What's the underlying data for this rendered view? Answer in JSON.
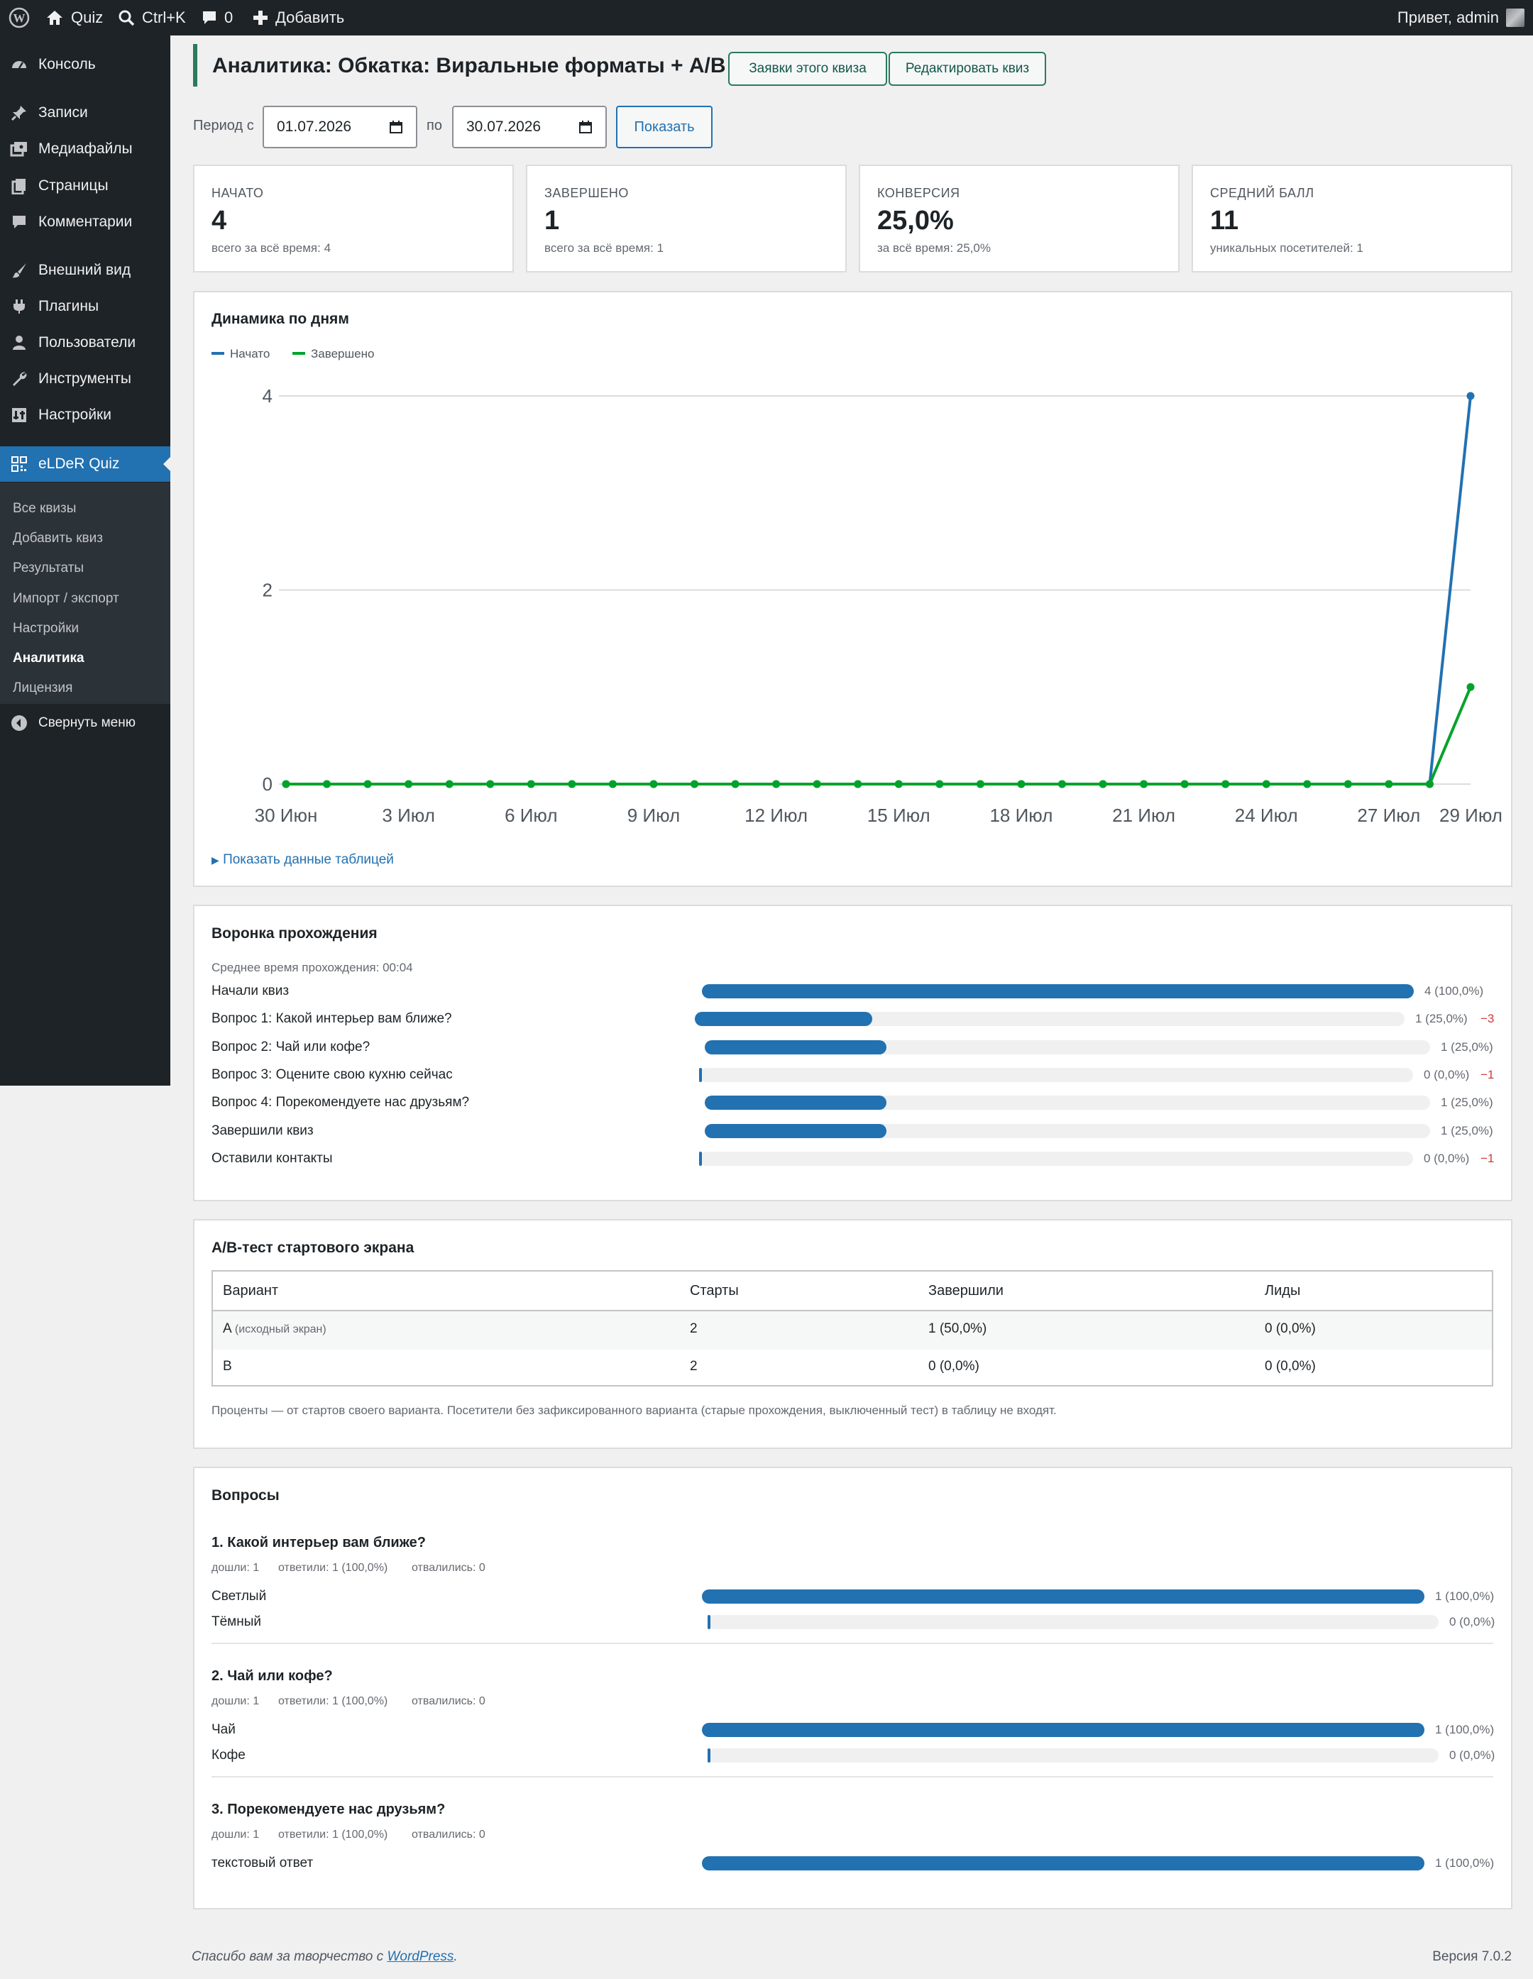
{
  "adminbar": {
    "site": "Quiz",
    "search": "Ctrl+K",
    "comments": "0",
    "add": "Добавить",
    "greeting": "Привет, admin"
  },
  "sidebar": {
    "items": [
      {
        "label": "Консоль",
        "icon": "dashboard-icon"
      },
      {
        "label": "Записи",
        "icon": "pin-icon"
      },
      {
        "label": "Медиафайлы",
        "icon": "media-icon"
      },
      {
        "label": "Страницы",
        "icon": "pages-icon"
      },
      {
        "label": "Комментарии",
        "icon": "comment-icon"
      },
      {
        "label": "Внешний вид",
        "icon": "brush-icon"
      },
      {
        "label": "Плагины",
        "icon": "plugin-icon"
      },
      {
        "label": "Пользователи",
        "icon": "users-icon"
      },
      {
        "label": "Инструменты",
        "icon": "wrench-icon"
      },
      {
        "label": "Настройки",
        "icon": "settings-icon"
      },
      {
        "label": "eLDeR Quiz",
        "icon": "quiz-icon"
      }
    ],
    "submenu": [
      "Все квизы",
      "Добавить квиз",
      "Результаты",
      "Импорт / экспорт",
      "Настройки",
      "Аналитика",
      "Лицензия"
    ],
    "collapse": "Свернуть меню"
  },
  "header": {
    "title": "Аналитика: Обкатка: Виральные форматы + A/B",
    "btn_leads": "Заявки этого квиза",
    "btn_edit": "Редактировать квиз"
  },
  "period": {
    "from_label": "Период с",
    "from": "01.07.2026",
    "to_label": "по",
    "to": "30.07.2026",
    "show": "Показать"
  },
  "stats": [
    {
      "label": "НАЧАТО",
      "value": "4",
      "sub": "всего за всё время: 4"
    },
    {
      "label": "ЗАВЕРШЕНО",
      "value": "1",
      "sub": "всего за всё время: 1"
    },
    {
      "label": "КОНВЕРСИЯ",
      "value": "25,0%",
      "sub": "за всё время: 25,0%"
    },
    {
      "label": "СРЕДНИЙ БАЛЛ",
      "value": "11",
      "sub": "уникальных посетителей: 1"
    }
  ],
  "dynamics": {
    "title": "Динамика по дням",
    "show_table": "Показать данные таблицей"
  },
  "chart_data": {
    "type": "line",
    "title": "Динамика по дням",
    "x": [
      "30 Июн",
      "1 Июл",
      "2 Июл",
      "3 Июл",
      "4 Июл",
      "5 Июл",
      "6 Июл",
      "7 Июл",
      "8 Июл",
      "9 Июл",
      "10 Июл",
      "11 Июл",
      "12 Июл",
      "13 Июл",
      "14 Июл",
      "15 Июл",
      "16 Июл",
      "17 Июл",
      "18 Июл",
      "19 Июл",
      "20 Июл",
      "21 Июл",
      "22 Июл",
      "23 Июл",
      "24 Июл",
      "25 Июл",
      "26 Июл",
      "27 Июл",
      "28 Июл",
      "29 Июл"
    ],
    "tick_labels": [
      "30 Июн",
      "3 Июл",
      "6 Июл",
      "9 Июл",
      "12 Июл",
      "15 Июл",
      "18 Июл",
      "21 Июл",
      "24 Июл",
      "27 Июл",
      "29 Июл"
    ],
    "series": [
      {
        "name": "Начато",
        "color": "#2271b1",
        "values": [
          0,
          0,
          0,
          0,
          0,
          0,
          0,
          0,
          0,
          0,
          0,
          0,
          0,
          0,
          0,
          0,
          0,
          0,
          0,
          0,
          0,
          0,
          0,
          0,
          0,
          0,
          0,
          0,
          0,
          4
        ]
      },
      {
        "name": "Завершено",
        "color": "#00a32a",
        "values": [
          0,
          0,
          0,
          0,
          0,
          0,
          0,
          0,
          0,
          0,
          0,
          0,
          0,
          0,
          0,
          0,
          0,
          0,
          0,
          0,
          0,
          0,
          0,
          0,
          0,
          0,
          0,
          0,
          0,
          1
        ]
      }
    ],
    "yticks": [
      "0",
      "2",
      "4"
    ],
    "ylim": [
      0,
      4
    ],
    "grid": true,
    "legend": "top-left"
  },
  "funnel": {
    "title": "Воронка прохождения",
    "avg_time": "Среднее время прохождения: 00:04",
    "rows": [
      {
        "label": "Начали квиз",
        "fraction": 1.0,
        "value": "4 (100,0%)",
        "delta": ""
      },
      {
        "label": "Вопрос 1: Какой интерьер вам ближе?",
        "fraction": 0.25,
        "value": "1 (25,0%)",
        "delta": "−3"
      },
      {
        "label": "Вопрос 2: Чай или кофе?",
        "fraction": 0.25,
        "value": "1 (25,0%)",
        "delta": ""
      },
      {
        "label": "Вопрос 3: Оцените свою кухню сейчас",
        "fraction": 0.0,
        "value": "0 (0,0%)",
        "delta": "−1"
      },
      {
        "label": "Вопрос 4: Порекомендуете нас друзьям?",
        "fraction": 0.25,
        "value": "1 (25,0%)",
        "delta": ""
      },
      {
        "label": "Завершили квиз",
        "fraction": 0.25,
        "value": "1 (25,0%)",
        "delta": ""
      },
      {
        "label": "Оставили контакты",
        "fraction": 0.0,
        "value": "0 (0,0%)",
        "delta": "−1"
      }
    ]
  },
  "abtest": {
    "title": "A/B-тест стартового экрана",
    "headers": [
      "Вариант",
      "Старты",
      "Завершили",
      "Лиды"
    ],
    "rows": [
      {
        "variant": "A",
        "note": "(исходный экран)",
        "starts": "2",
        "completed": "1 (50,0%)",
        "leads": "0 (0,0%)"
      },
      {
        "variant": "B",
        "note": "",
        "starts": "2",
        "completed": "0 (0,0%)",
        "leads": "0 (0,0%)"
      }
    ],
    "footnote": "Проценты — от стартов своего варианта. Посетители без зафиксированного варианта (старые прохождения, выключенный тест) в таблицу не входят."
  },
  "questions": {
    "title": "Вопросы",
    "items": [
      {
        "title": "1. Какой интерьер вам ближе?",
        "reached": "дошли: 1",
        "answered": "ответили: 1 (100,0%)",
        "dropped": "отвалились: 0",
        "options": [
          {
            "label": "Светлый",
            "fraction": 1.0,
            "value": "1 (100,0%)"
          },
          {
            "label": "Тёмный",
            "fraction": 0.0,
            "value": "0 (0,0%)"
          }
        ]
      },
      {
        "title": "2. Чай или кофе?",
        "reached": "дошли: 1",
        "answered": "ответили: 1 (100,0%)",
        "dropped": "отвалились: 0",
        "options": [
          {
            "label": "Чай",
            "fraction": 1.0,
            "value": "1 (100,0%)"
          },
          {
            "label": "Кофе",
            "fraction": 0.0,
            "value": "0 (0,0%)"
          }
        ]
      },
      {
        "title": "3. Порекомендуете нас друзьям?",
        "reached": "дошли: 1",
        "answered": "ответили: 1 (100,0%)",
        "dropped": "отвалились: 0",
        "options": [
          {
            "label": "текстовый ответ",
            "fraction": 1.0,
            "value": "1 (100,0%)"
          }
        ]
      }
    ]
  },
  "footer": {
    "thanks": "Спасибо вам за творчество с",
    "wp": "WordPress",
    "version": "Версия 7.0.2"
  }
}
